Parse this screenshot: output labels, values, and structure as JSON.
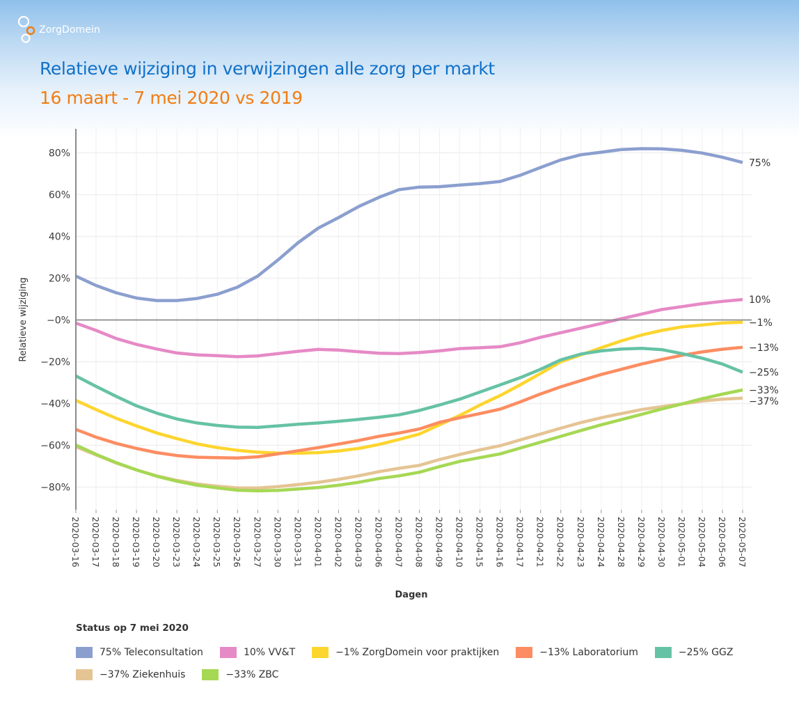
{
  "brand": {
    "logo_text": "ZorgDomein",
    "colors": {
      "title": "#1171c9",
      "subtitle": "#f07d14",
      "logo_accent": "#f07d14"
    }
  },
  "header": {
    "title": "Relatieve wijziging in verwijzingen alle zorg per markt",
    "subtitle": "16 maart - 7 mei 2020 vs 2019"
  },
  "legend": {
    "title": "Status op 7 mei 2020"
  },
  "chart_data": {
    "type": "line",
    "title": "Relatieve wijziging in verwijzingen alle zorg per markt",
    "subtitle": "16 maart - 7 mei 2020 vs 2019",
    "xlabel": "Dagen",
    "ylabel": "Relatieve wijziging",
    "ylim": [
      -91,
      91
    ],
    "yticks": [
      80,
      60,
      40,
      20,
      0,
      -20,
      -40,
      -60,
      -80
    ],
    "ytick_labels": [
      "80%",
      "60%",
      "40%",
      "20%",
      "−0%",
      "−20%",
      "−40%",
      "−60%",
      "−80%"
    ],
    "grid": true,
    "legend_position": "bottom",
    "categories": [
      "2020-03-16",
      "2020-03-17",
      "2020-03-18",
      "2020-03-19",
      "2020-03-20",
      "2020-03-23",
      "2020-03-24",
      "2020-03-25",
      "2020-03-26",
      "2020-03-27",
      "2020-03-30",
      "2020-03-31",
      "2020-04-01",
      "2020-04-02",
      "2020-04-03",
      "2020-04-06",
      "2020-04-07",
      "2020-04-08",
      "2020-04-09",
      "2020-04-10",
      "2020-04-15",
      "2020-04-16",
      "2020-04-17",
      "2020-04-21",
      "2020-04-22",
      "2020-04-23",
      "2020-04-24",
      "2020-04-28",
      "2020-04-29",
      "2020-04-30",
      "2020-05-01",
      "2020-05-04",
      "2020-05-06",
      "2020-05-07"
    ],
    "series": [
      {
        "name": "Teleconsultation",
        "legend_label": "75% Teleconsultation",
        "end_label": "75%",
        "color": "#8b9fcf",
        "values": [
          21,
          16.5,
          13,
          10.5,
          9.3,
          9.3,
          10.3,
          12.3,
          15.7,
          21,
          28.7,
          37,
          44,
          49,
          54.3,
          58.7,
          62.4,
          63.6,
          63.8,
          64.6,
          65.3,
          66.3,
          69.3,
          73,
          76.6,
          79.1,
          80.3,
          81.6,
          82,
          81.9,
          81.2,
          79.9,
          77.9,
          75.4
        ]
      },
      {
        "name": "VV&T",
        "legend_label": "10% VV&T",
        "end_label": "10%",
        "color": "#e68ac6",
        "values": [
          -1.5,
          -5,
          -8.9,
          -11.7,
          -13.9,
          -15.8,
          -16.7,
          -17.1,
          -17.6,
          -17.2,
          -16.1,
          -15,
          -14.1,
          -14.4,
          -15.2,
          -15.9,
          -16.1,
          -15.6,
          -14.8,
          -13.7,
          -13.3,
          -12.8,
          -10.9,
          -8.3,
          -6.1,
          -3.9,
          -1.7,
          0.6,
          2.8,
          5,
          6.4,
          7.8,
          8.9,
          9.8
        ]
      },
      {
        "name": "ZorgDomein voor praktijken",
        "legend_label": "−1% ZorgDomein voor praktijken",
        "end_label": "−1%",
        "color": "#fdd52f",
        "values": [
          -38.5,
          -42.9,
          -47.1,
          -50.7,
          -54.1,
          -56.8,
          -59.3,
          -61.1,
          -62.4,
          -63.3,
          -63.7,
          -63.8,
          -63.5,
          -62.7,
          -61.5,
          -59.6,
          -57.2,
          -54.6,
          -50.2,
          -45.7,
          -40.7,
          -36.2,
          -31,
          -25.6,
          -20,
          -16.7,
          -13.3,
          -10,
          -7.2,
          -5,
          -3.3,
          -2.4,
          -1.4,
          -1.1
        ]
      },
      {
        "name": "Laboratorium",
        "legend_label": "−13% Laboratorium",
        "end_label": "−13%",
        "color": "#fc8d62",
        "values": [
          -52.4,
          -56.1,
          -59.1,
          -61.5,
          -63.5,
          -64.9,
          -65.7,
          -65.9,
          -66.1,
          -65.5,
          -64.1,
          -62.6,
          -61.1,
          -59.4,
          -57.7,
          -55.7,
          -54.1,
          -52.2,
          -49,
          -46.8,
          -44.8,
          -42.7,
          -39.2,
          -35.4,
          -32,
          -29,
          -26.1,
          -23.6,
          -21.1,
          -18.9,
          -16.9,
          -15.3,
          -14,
          -13.1
        ]
      },
      {
        "name": "GGZ",
        "legend_label": "−25% GGZ",
        "end_label": "−25%",
        "color": "#66c2a5",
        "values": [
          -26.8,
          -31.8,
          -36.6,
          -41.1,
          -44.6,
          -47.4,
          -49.3,
          -50.5,
          -51.3,
          -51.4,
          -50.7,
          -49.9,
          -49.3,
          -48.5,
          -47.6,
          -46.6,
          -45.4,
          -43.3,
          -40.7,
          -37.9,
          -34.5,
          -31.1,
          -27.6,
          -23.6,
          -19.1,
          -16.3,
          -14.8,
          -13.9,
          -13.6,
          -14.2,
          -16.1,
          -18.3,
          -21.1,
          -25
        ]
      },
      {
        "name": "Ziekenhuis",
        "legend_label": "−37% Ziekenhuis",
        "end_label": "−37%",
        "color": "#e5c494",
        "values": [
          -60.7,
          -64.6,
          -68.5,
          -71.8,
          -74.6,
          -76.8,
          -78.5,
          -79.6,
          -80.4,
          -80.4,
          -79.8,
          -78.8,
          -77.7,
          -76.3,
          -74.6,
          -72.6,
          -71,
          -69.6,
          -66.8,
          -64.4,
          -62.2,
          -60.2,
          -57.4,
          -54.6,
          -51.8,
          -49.1,
          -46.8,
          -44.8,
          -42.9,
          -41.5,
          -40.2,
          -38.8,
          -37.9,
          -37.4
        ]
      },
      {
        "name": "ZBC",
        "legend_label": "−33% ZBC",
        "end_label": "−33%",
        "color": "#a6d854",
        "values": [
          -59.9,
          -64.3,
          -68.3,
          -71.8,
          -74.8,
          -77.2,
          -79.1,
          -80.4,
          -81.5,
          -81.8,
          -81.6,
          -80.9,
          -80.2,
          -79.1,
          -77.7,
          -75.9,
          -74.6,
          -72.9,
          -70.2,
          -67.7,
          -65.9,
          -64.1,
          -61.3,
          -58.5,
          -55.7,
          -52.9,
          -50.2,
          -47.7,
          -45.2,
          -42.6,
          -40.2,
          -37.7,
          -35.5,
          -33.5
        ]
      }
    ],
    "legend_rows": [
      [
        0,
        1,
        2,
        3,
        4
      ],
      [
        5,
        6
      ]
    ]
  }
}
